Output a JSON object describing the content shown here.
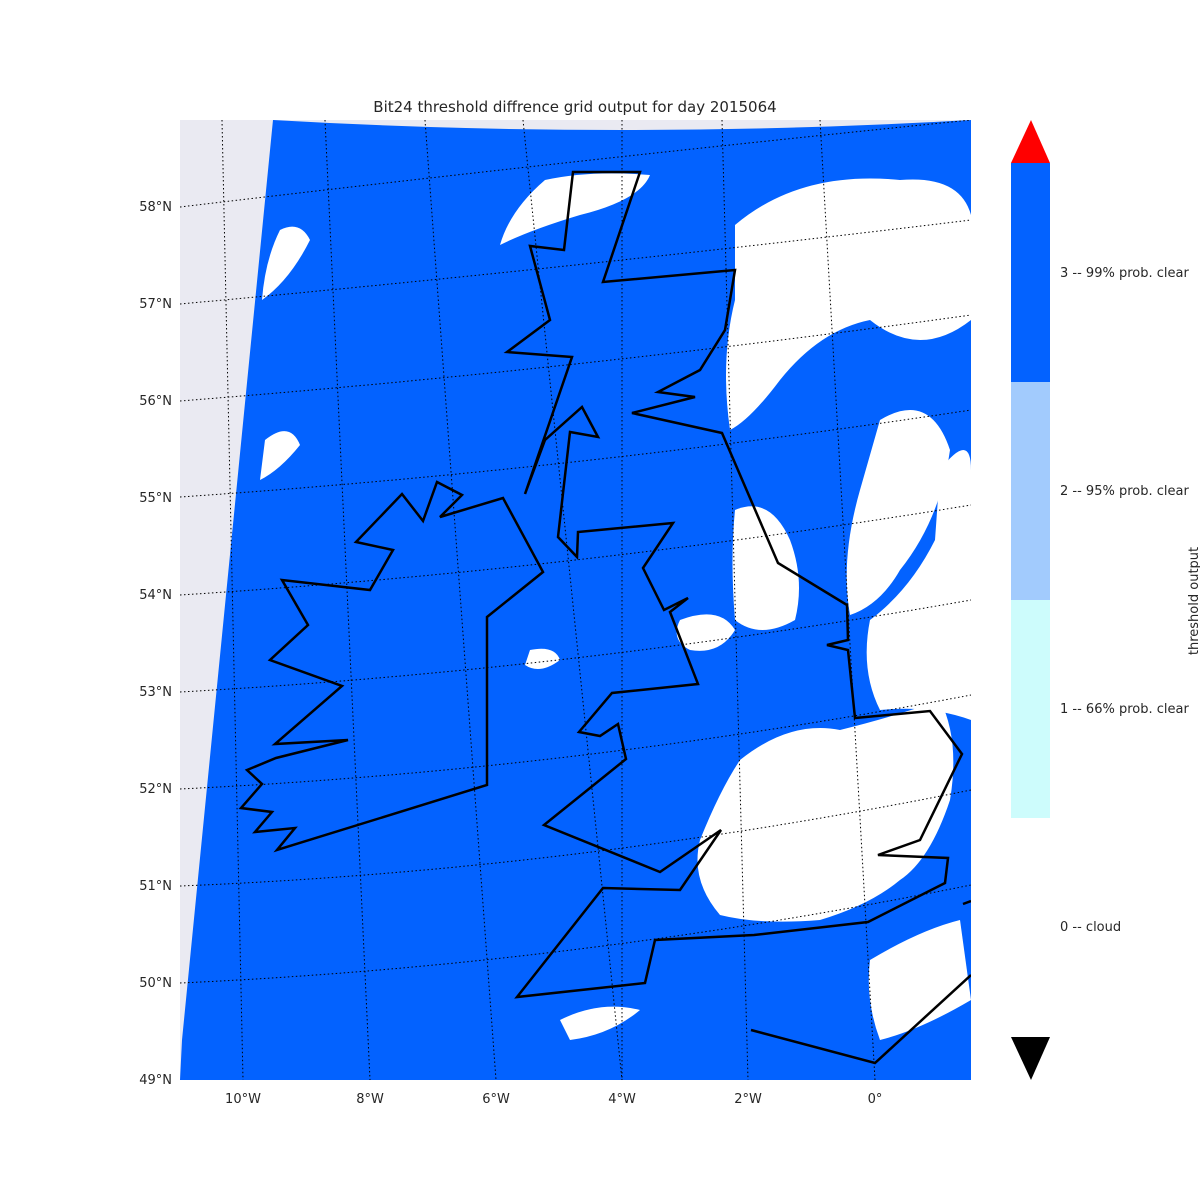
{
  "title": "Bit24 threshold diffrence grid  output for day 2015064",
  "map": {
    "lon_ticks": [
      "10°W",
      "8°W",
      "6°W",
      "4°W",
      "2°W",
      "0°"
    ],
    "lat_ticks": [
      "58°N",
      "57°N",
      "56°N",
      "55°N",
      "54°N",
      "53°N",
      "52°N",
      "51°N",
      "50°N",
      "49°N"
    ],
    "colors": {
      "frame_background": "#eaeaf2",
      "clear_99": "#0362ff",
      "cloud": "#ffffff",
      "coastline": "#000000",
      "gridline": "#000000"
    }
  },
  "colorbar": {
    "title": "threshold output",
    "categories": [
      {
        "label": "3 -- 99% prob. clear",
        "value": 3,
        "color": "#0362ff"
      },
      {
        "label": "2 -- 95% prob. clear",
        "value": 2,
        "color": "#a2cbfd"
      },
      {
        "label": "1 -- 66% prob. clear",
        "value": 1,
        "color": "#cdfcfc"
      },
      {
        "label": "0 -- cloud",
        "value": 0,
        "color": "#ffffff"
      }
    ],
    "over_color": "#ff0000",
    "under_color": "#000000"
  }
}
